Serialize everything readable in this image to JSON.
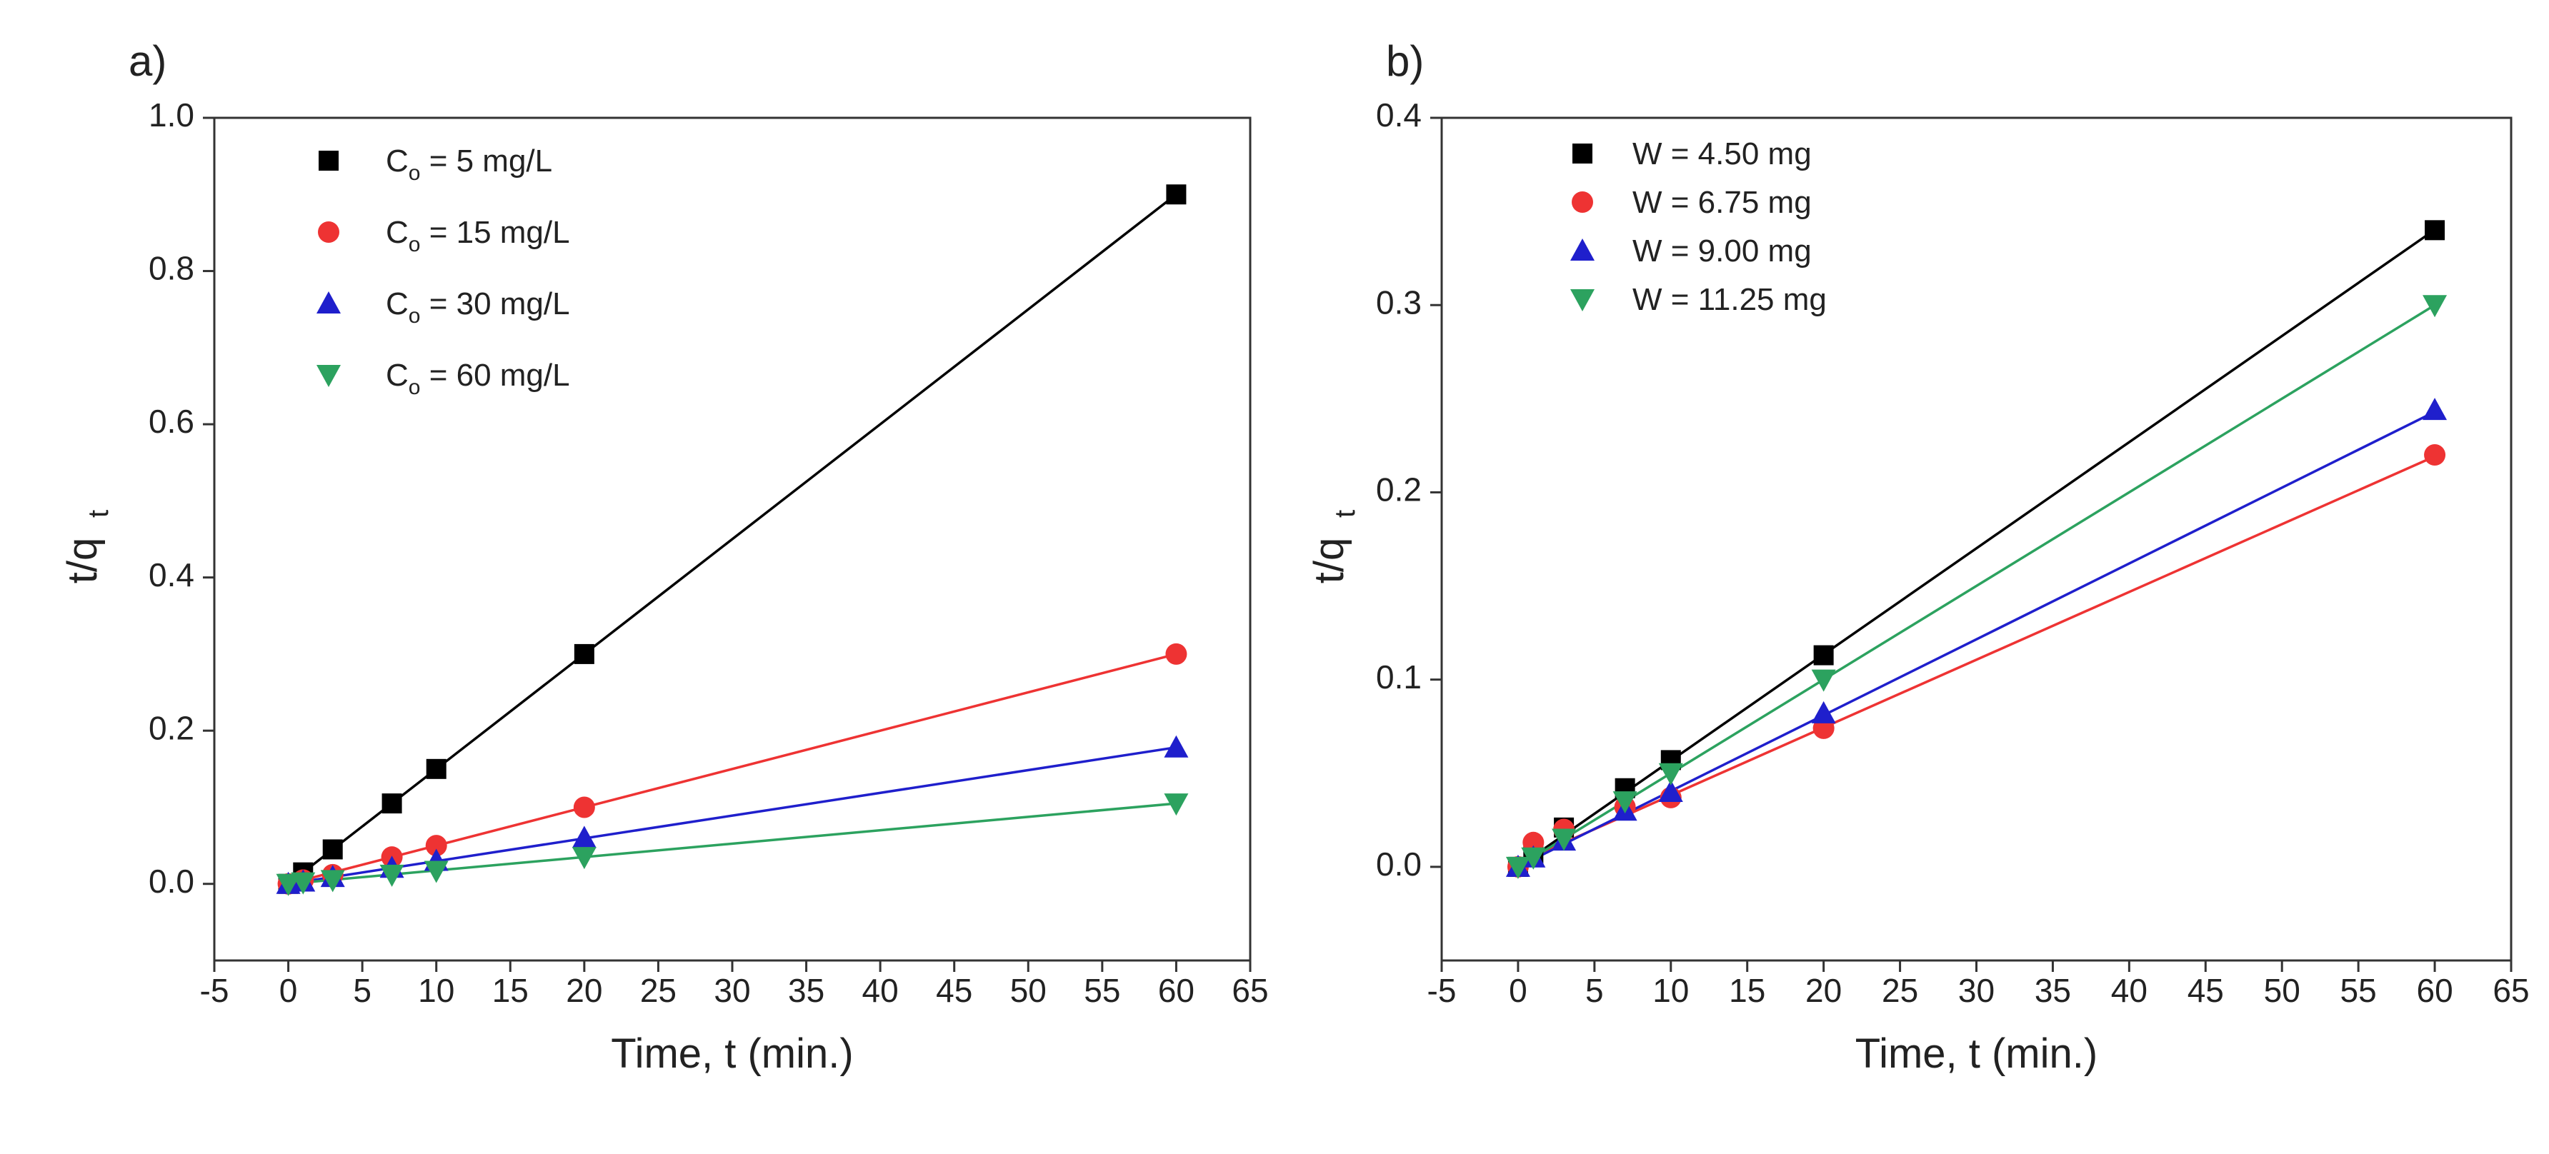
{
  "chart_data": [
    {
      "type": "scatter",
      "panel_label": "a)",
      "xlabel": "Time, t (min.)",
      "ylabel_main": "t/q",
      "ylabel_sub": "t",
      "xlim": [
        -5,
        65
      ],
      "ylim": [
        -0.1,
        1.0
      ],
      "xticks": [
        -5,
        0,
        5,
        10,
        15,
        20,
        25,
        30,
        35,
        40,
        45,
        50,
        55,
        60,
        65
      ],
      "yticks": [
        0.0,
        0.2,
        0.4,
        0.6,
        0.8,
        1.0
      ],
      "ytick_labels": [
        "0.0",
        "0.2",
        "0.4",
        "0.6",
        "0.8",
        "1.0"
      ],
      "legend_position": "top-left",
      "fit_lines": true,
      "series": [
        {
          "name_main": "C",
          "name_sub": "o",
          "name_rest": " = 5 mg/L",
          "marker": "square",
          "color": "#000000",
          "x": [
            0,
            1,
            3,
            7,
            10,
            20,
            60
          ],
          "y": [
            0.0,
            0.015,
            0.045,
            0.105,
            0.15,
            0.3,
            0.9
          ],
          "fit": [
            0.0,
            0.015
          ]
        },
        {
          "name_main": "C",
          "name_sub": "o",
          "name_rest": " = 15 mg/L",
          "marker": "circle",
          "color": "#ee3333",
          "x": [
            0,
            1,
            3,
            7,
            10,
            20,
            60
          ],
          "y": [
            0.0,
            0.005,
            0.012,
            0.035,
            0.05,
            0.1,
            0.3
          ],
          "fit": [
            0.0,
            0.005
          ]
        },
        {
          "name_main": "C",
          "name_sub": "o",
          "name_rest": " = 30 mg/L",
          "marker": "triangle-up",
          "color": "#1f1fcc",
          "x": [
            0,
            1,
            3,
            7,
            10,
            20,
            60
          ],
          "y": [
            0.0,
            0.003,
            0.009,
            0.021,
            0.03,
            0.06,
            0.178
          ],
          "fit": [
            0.0,
            0.00297
          ]
        },
        {
          "name_main": "C",
          "name_sub": "o",
          "name_rest": " = 60 mg/L",
          "marker": "triangle-down",
          "color": "#2ca25f",
          "x": [
            0,
            1,
            3,
            7,
            10,
            20,
            60
          ],
          "y": [
            0.0,
            0.002,
            0.005,
            0.012,
            0.017,
            0.035,
            0.105
          ],
          "fit": [
            0.0,
            0.00175
          ]
        }
      ]
    },
    {
      "type": "scatter",
      "panel_label": "b)",
      "xlabel": "Time, t (min.)",
      "ylabel_main": "t/q",
      "ylabel_sub": "t",
      "xlim": [
        -5,
        65
      ],
      "ylim": [
        -0.05,
        0.4
      ],
      "xticks": [
        -5,
        0,
        5,
        10,
        15,
        20,
        25,
        30,
        35,
        40,
        45,
        50,
        55,
        60,
        65
      ],
      "yticks": [
        0.0,
        0.1,
        0.2,
        0.3,
        0.4
      ],
      "ytick_labels": [
        "0.0",
        "0.1",
        "0.2",
        "0.3",
        "0.4"
      ],
      "legend_position": "top-left",
      "fit_lines": true,
      "series": [
        {
          "name_main": "W = 4.50 mg",
          "name_sub": "",
          "name_rest": "",
          "marker": "square",
          "color": "#000000",
          "x": [
            0,
            1,
            3,
            7,
            10,
            20,
            60
          ],
          "y": [
            0.0,
            0.006,
            0.021,
            0.042,
            0.057,
            0.113,
            0.34
          ],
          "fit": [
            0.0,
            0.00567
          ]
        },
        {
          "name_main": "W = 6.75 mg",
          "name_sub": "",
          "name_rest": "",
          "marker": "circle",
          "color": "#ee3333",
          "x": [
            0,
            1,
            3,
            7,
            10,
            20,
            60
          ],
          "y": [
            0.0,
            0.013,
            0.02,
            0.032,
            0.037,
            0.074,
            0.22
          ],
          "fit": [
            0.002,
            0.00362
          ]
        },
        {
          "name_main": "W = 9.00 mg",
          "name_sub": "",
          "name_rest": "",
          "marker": "triangle-up",
          "color": "#1f1fcc",
          "x": [
            0,
            1,
            3,
            7,
            10,
            20,
            60
          ],
          "y": [
            0.0,
            0.005,
            0.014,
            0.03,
            0.04,
            0.082,
            0.244
          ],
          "fit": [
            0.0,
            0.00405
          ]
        },
        {
          "name_main": "W = 11.25 mg",
          "name_sub": "",
          "name_rest": "",
          "marker": "triangle-down",
          "color": "#2ca25f",
          "x": [
            0,
            1,
            3,
            7,
            10,
            20,
            60
          ],
          "y": [
            0.0,
            0.005,
            0.015,
            0.035,
            0.05,
            0.1,
            0.3
          ],
          "fit": [
            0.0,
            0.005
          ]
        }
      ]
    }
  ]
}
